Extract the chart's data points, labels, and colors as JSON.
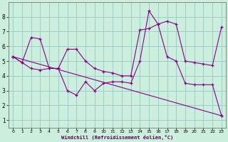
{
  "xlabel": "Windchill (Refroidissement éolien,°C)",
  "bg_color": "#cceedd",
  "line_color": "#880088",
  "grid_color": "#99cccc",
  "xlim": [
    -0.5,
    23.5
  ],
  "ylim": [
    0.5,
    9.0
  ],
  "xticks": [
    0,
    1,
    2,
    3,
    4,
    5,
    6,
    7,
    8,
    9,
    10,
    11,
    12,
    13,
    14,
    15,
    16,
    17,
    18,
    19,
    20,
    21,
    22,
    23
  ],
  "yticks": [
    1,
    2,
    3,
    4,
    5,
    6,
    7,
    8
  ],
  "line1_x": [
    0,
    1,
    2,
    3,
    4,
    5,
    6,
    7,
    8,
    9,
    10,
    11,
    12,
    13,
    14,
    15,
    16,
    17,
    18,
    19,
    20,
    21,
    22,
    23
  ],
  "line1_y": [
    5.3,
    4.9,
    6.6,
    6.5,
    4.5,
    4.5,
    5.8,
    5.8,
    5.0,
    4.5,
    4.3,
    4.2,
    4.0,
    4.0,
    7.1,
    7.2,
    7.5,
    7.7,
    7.5,
    5.0,
    4.9,
    4.8,
    4.7,
    7.3
  ],
  "line2_x": [
    0,
    1,
    2,
    3,
    4,
    5,
    6,
    7,
    8,
    9,
    10,
    11,
    12,
    13,
    14,
    15,
    16,
    17,
    18,
    19,
    20,
    21,
    22,
    23
  ],
  "line2_y": [
    5.3,
    4.9,
    4.5,
    4.4,
    4.5,
    4.5,
    3.0,
    2.7,
    3.6,
    3.0,
    3.5,
    3.6,
    3.6,
    3.5,
    5.0,
    8.4,
    7.5,
    5.3,
    5.0,
    3.5,
    3.4,
    3.4,
    3.4,
    1.3
  ],
  "line3_x": [
    0,
    23
  ],
  "line3_y": [
    5.3,
    1.3
  ]
}
